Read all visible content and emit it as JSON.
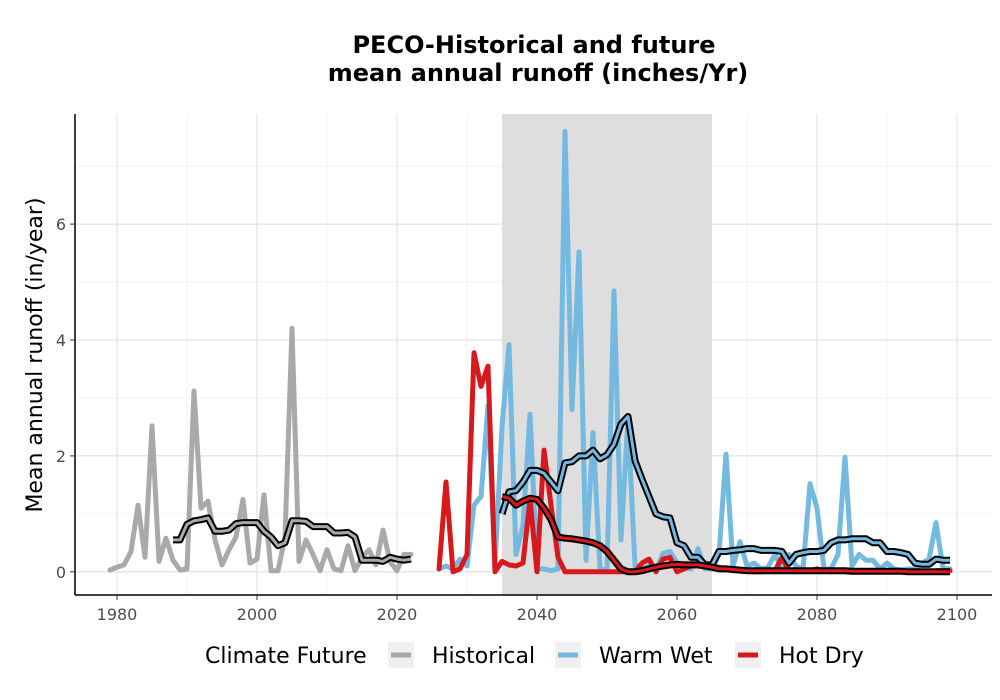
{
  "chart_data": {
    "type": "line",
    "title": [
      "PECO-Historical and future",
      "mean annual runoff (inches/Yr)"
    ],
    "xlabel": "",
    "ylabel": "Mean annual runoff (in/year)",
    "xlim": [
      1974,
      2105
    ],
    "ylim": [
      -0.4,
      7.9
    ],
    "x_ticks": [
      1980,
      2000,
      2020,
      2040,
      2060,
      2080,
      2100
    ],
    "y_ticks": [
      0,
      2,
      4,
      6
    ],
    "grid": true,
    "shaded_period": [
      2035,
      2065
    ],
    "legend": {
      "title": "Climate Future",
      "position": "bottom",
      "entries": [
        "Historical",
        "Warm Wet",
        "Hot Dry"
      ]
    },
    "colors": {
      "Historical": "#a9a9a9",
      "Warm Wet": "#74b9e0",
      "Hot Dry": "#d7191c",
      "shade": "#dcdcdc",
      "rolling_mean_outline": "#000000"
    },
    "series": [
      {
        "name": "Historical",
        "x": [
          1979,
          1980,
          1981,
          1982,
          1983,
          1984,
          1985,
          1986,
          1987,
          1988,
          1989,
          1990,
          1991,
          1992,
          1993,
          1994,
          1995,
          1996,
          1997,
          1998,
          1999,
          2000,
          2001,
          2002,
          2003,
          2004,
          2005,
          2006,
          2007,
          2008,
          2009,
          2010,
          2011,
          2012,
          2013,
          2014,
          2015,
          2016,
          2017,
          2018,
          2019,
          2020,
          2021,
          2022
        ],
        "values": [
          0.03,
          0.08,
          0.12,
          0.35,
          1.15,
          0.25,
          2.52,
          0.18,
          0.58,
          0.2,
          0.03,
          0.05,
          3.12,
          1.1,
          1.22,
          0.55,
          0.12,
          0.38,
          0.6,
          1.25,
          0.15,
          0.22,
          1.33,
          0.02,
          0.02,
          0.6,
          4.2,
          0.18,
          0.55,
          0.3,
          0.02,
          0.38,
          0.05,
          0.02,
          0.45,
          0.02,
          0.25,
          0.38,
          0.12,
          0.72,
          0.18,
          0.02,
          0.3,
          0.3
        ],
        "rolling_mean": {
          "x": [
            1988,
            1989,
            1990,
            1991,
            1992,
            1993,
            1994,
            1995,
            1996,
            1997,
            1998,
            1999,
            2000,
            2001,
            2002,
            2003,
            2004,
            2005,
            2006,
            2007,
            2008,
            2009,
            2010,
            2011,
            2012,
            2013,
            2014,
            2015,
            2016,
            2017,
            2018,
            2019,
            2020,
            2021,
            2022
          ],
          "values": [
            0.55,
            0.55,
            0.82,
            0.88,
            0.9,
            0.93,
            0.7,
            0.7,
            0.72,
            0.83,
            0.85,
            0.85,
            0.85,
            0.7,
            0.6,
            0.45,
            0.5,
            0.88,
            0.88,
            0.87,
            0.78,
            0.78,
            0.78,
            0.67,
            0.67,
            0.68,
            0.6,
            0.2,
            0.2,
            0.2,
            0.18,
            0.25,
            0.22,
            0.2,
            0.22
          ]
        }
      },
      {
        "name": "Warm Wet",
        "x": [
          2026,
          2027,
          2028,
          2029,
          2030,
          2031,
          2032,
          2033,
          2034,
          2035,
          2036,
          2037,
          2038,
          2039,
          2040,
          2041,
          2042,
          2043,
          2044,
          2045,
          2046,
          2047,
          2048,
          2049,
          2050,
          2051,
          2052,
          2053,
          2054,
          2055,
          2056,
          2057,
          2058,
          2059,
          2060,
          2061,
          2062,
          2063,
          2064,
          2065,
          2066,
          2067,
          2068,
          2069,
          2070,
          2071,
          2072,
          2073,
          2074,
          2075,
          2076,
          2077,
          2078,
          2079,
          2080,
          2081,
          2082,
          2083,
          2084,
          2085,
          2086,
          2087,
          2088,
          2089,
          2090,
          2091,
          2092,
          2093,
          2094,
          2095,
          2096,
          2097,
          2098,
          2099
        ],
        "values": [
          0.05,
          0.1,
          0.05,
          0.22,
          0.1,
          1.15,
          1.3,
          2.87,
          0.1,
          2.5,
          3.92,
          0.3,
          0.8,
          2.72,
          0.05,
          0.05,
          0.02,
          0.05,
          7.6,
          2.8,
          5.52,
          0.2,
          2.4,
          0.05,
          0.02,
          4.85,
          0.55,
          2.65,
          0.1,
          0.05,
          0.1,
          0.03,
          0.32,
          0.35,
          0.15,
          0.08,
          0.05,
          0.4,
          0.05,
          0.05,
          0.3,
          2.03,
          0.1,
          0.52,
          0.1,
          0.15,
          0.05,
          0.08,
          0.3,
          0.05,
          0.3,
          0.1,
          0.05,
          1.52,
          1.1,
          0.05,
          0.05,
          0.3,
          1.98,
          0.1,
          0.3,
          0.2,
          0.2,
          0.05,
          0.15,
          0.05,
          0.03,
          0.05,
          0.05,
          0.15,
          0.22,
          0.85,
          0.05,
          0.05
        ],
        "rolling_mean": {
          "x": [
            2035,
            2036,
            2037,
            2038,
            2039,
            2040,
            2041,
            2042,
            2043,
            2044,
            2045,
            2046,
            2047,
            2048,
            2049,
            2050,
            2051,
            2052,
            2053,
            2054,
            2055,
            2056,
            2057,
            2058,
            2059,
            2060,
            2061,
            2062,
            2063,
            2064,
            2065,
            2066,
            2067,
            2068,
            2069,
            2070,
            2071,
            2072,
            2073,
            2074,
            2075,
            2076,
            2077,
            2078,
            2079,
            2080,
            2081,
            2082,
            2083,
            2084,
            2085,
            2086,
            2087,
            2088,
            2089,
            2090,
            2091,
            2092,
            2093,
            2094,
            2095,
            2096,
            2097,
            2098,
            2099
          ],
          "values": [
            1.0,
            1.38,
            1.4,
            1.55,
            1.75,
            1.75,
            1.7,
            1.55,
            1.4,
            1.88,
            1.9,
            2.0,
            2.0,
            2.1,
            1.95,
            2.02,
            2.2,
            2.55,
            2.68,
            1.92,
            1.6,
            1.3,
            1.0,
            0.95,
            0.93,
            0.5,
            0.45,
            0.25,
            0.25,
            0.12,
            0.12,
            0.35,
            0.35,
            0.37,
            0.38,
            0.4,
            0.4,
            0.37,
            0.37,
            0.37,
            0.35,
            0.15,
            0.3,
            0.33,
            0.35,
            0.35,
            0.37,
            0.5,
            0.55,
            0.55,
            0.57,
            0.57,
            0.57,
            0.5,
            0.5,
            0.35,
            0.35,
            0.33,
            0.3,
            0.15,
            0.13,
            0.13,
            0.22,
            0.2,
            0.2
          ]
        }
      },
      {
        "name": "Hot Dry",
        "x": [
          2026,
          2027,
          2028,
          2029,
          2030,
          2031,
          2032,
          2033,
          2034,
          2035,
          2036,
          2037,
          2038,
          2039,
          2040,
          2041,
          2042,
          2043,
          2044,
          2045,
          2046,
          2047,
          2048,
          2049,
          2050,
          2051,
          2052,
          2053,
          2054,
          2055,
          2056,
          2057,
          2058,
          2059,
          2060,
          2061,
          2062,
          2063,
          2064,
          2065,
          2066,
          2067,
          2068,
          2069,
          2070,
          2071,
          2072,
          2073,
          2074,
          2075,
          2076,
          2077,
          2078,
          2079,
          2080,
          2081,
          2082,
          2083,
          2084,
          2085,
          2086,
          2087,
          2088,
          2089,
          2090,
          2091,
          2092,
          2093,
          2094,
          2095,
          2096,
          2097,
          2098,
          2099
        ],
        "values": [
          0.05,
          1.55,
          0.0,
          0.05,
          0.3,
          3.78,
          3.2,
          3.55,
          0.0,
          0.18,
          0.12,
          0.1,
          0.15,
          1.25,
          0.0,
          2.1,
          1.15,
          0.25,
          0.0,
          0.0,
          0.0,
          0.0,
          0.0,
          0.0,
          0.0,
          0.0,
          0.0,
          0.0,
          0.0,
          0.15,
          0.22,
          0.0,
          0.22,
          0.25,
          0.0,
          0.05,
          0.1,
          0.15,
          0.1,
          0.1,
          0.08,
          0.05,
          0.02,
          0.03,
          0.02,
          0.0,
          0.0,
          0.02,
          0.02,
          0.25,
          0.02,
          0.0,
          0.02,
          0.02,
          0.05,
          0.02,
          0.0,
          0.02,
          0.02,
          0.0,
          0.02,
          0.0,
          0.02,
          0.0,
          0.02,
          0.0,
          0.02,
          0.0,
          0.02,
          0.0,
          0.0,
          0.02,
          0.02,
          0.02
        ],
        "rolling_mean": {
          "x": [
            2035,
            2036,
            2037,
            2038,
            2039,
            2040,
            2041,
            2042,
            2043,
            2044,
            2045,
            2046,
            2047,
            2048,
            2049,
            2050,
            2051,
            2052,
            2053,
            2054,
            2055,
            2056,
            2057,
            2058,
            2059,
            2060,
            2061,
            2062,
            2063,
            2064,
            2065,
            2066,
            2067,
            2068,
            2069,
            2070,
            2071,
            2072,
            2073,
            2074,
            2075,
            2076,
            2077,
            2078,
            2079,
            2080,
            2081,
            2082,
            2083,
            2084,
            2085,
            2086,
            2087,
            2088,
            2089,
            2090,
            2091,
            2092,
            2093,
            2094,
            2095,
            2096,
            2097,
            2098,
            2099
          ],
          "values": [
            1.3,
            1.27,
            1.15,
            1.22,
            1.27,
            1.25,
            1.1,
            0.9,
            0.6,
            0.58,
            0.57,
            0.55,
            0.53,
            0.5,
            0.45,
            0.35,
            0.2,
            0.05,
            0.0,
            0.0,
            0.02,
            0.05,
            0.08,
            0.1,
            0.12,
            0.13,
            0.12,
            0.12,
            0.12,
            0.1,
            0.08,
            0.05,
            0.05,
            0.04,
            0.03,
            0.02,
            0.02,
            0.02,
            0.02,
            0.02,
            0.02,
            0.02,
            0.02,
            0.02,
            0.02,
            0.02,
            0.02,
            0.02,
            0.02,
            0.02,
            0.01,
            0.01,
            0.01,
            0.01,
            0.01,
            0.01,
            0.01,
            0.01,
            0.0,
            0.0,
            0.0,
            0.0,
            0.0,
            0.0,
            0.0
          ]
        }
      }
    ]
  }
}
